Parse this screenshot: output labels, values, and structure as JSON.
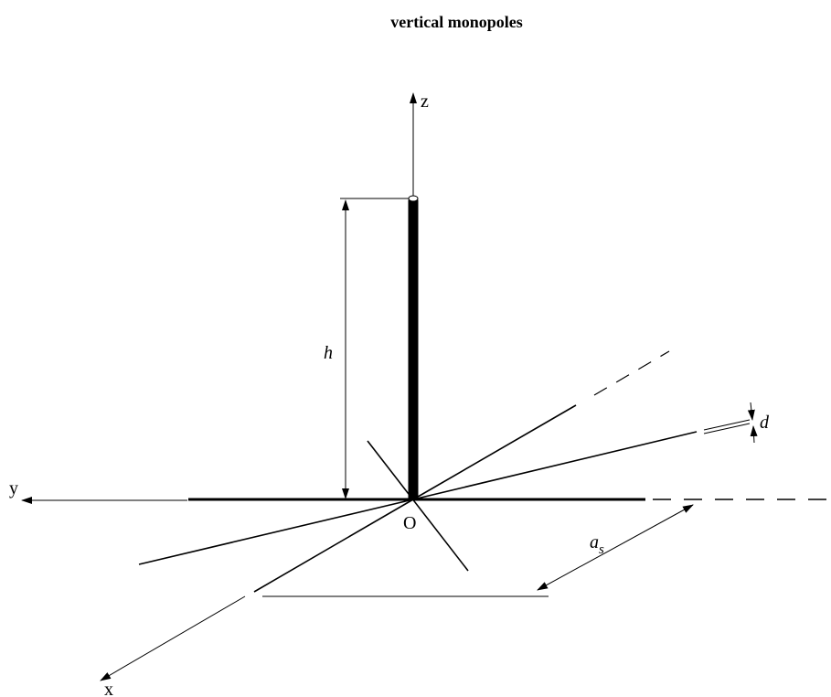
{
  "title": "vertical monopoles",
  "labels": {
    "z_axis": "z",
    "y_axis": "y",
    "x_axis": "x",
    "origin": "O",
    "height": "h",
    "diameter": "d",
    "spacing_base": "a",
    "spacing_sub": "s"
  }
}
